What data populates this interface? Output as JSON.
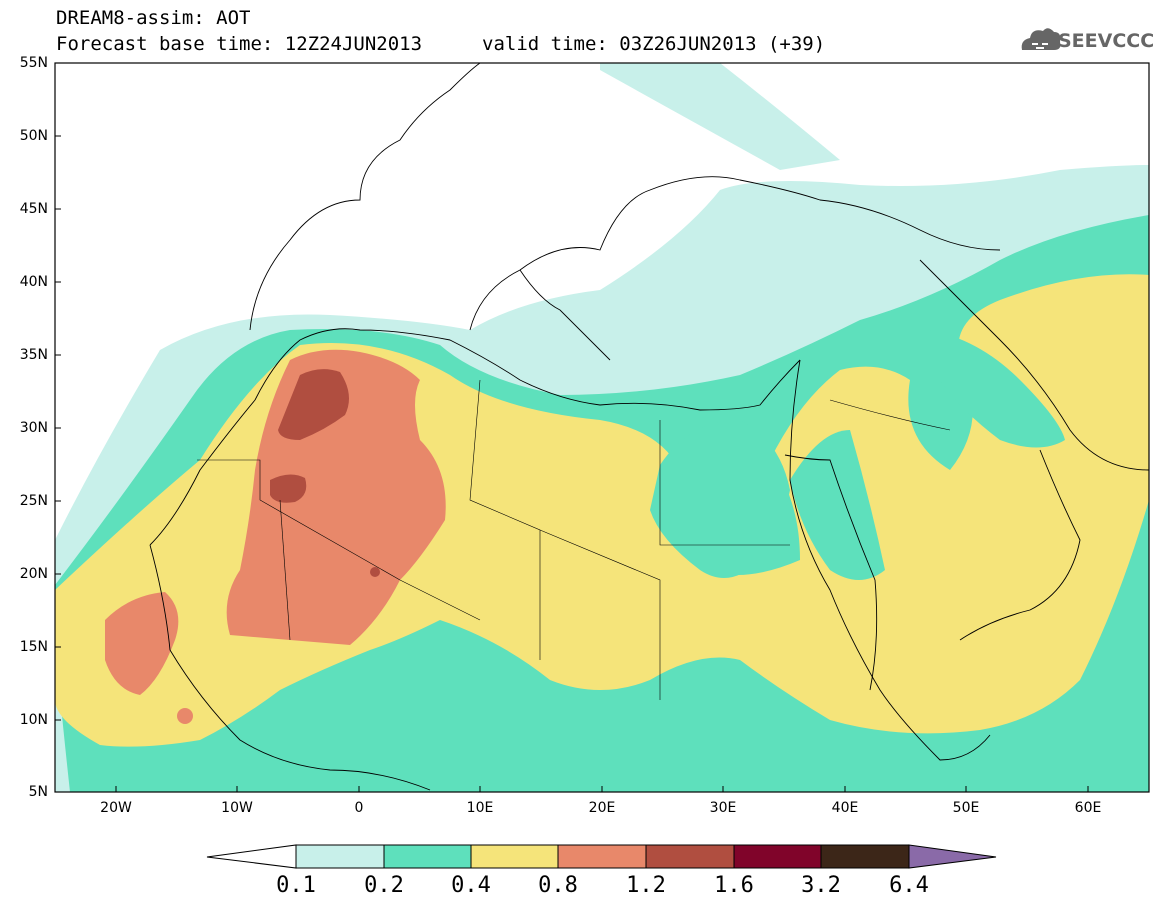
{
  "header": {
    "title_line1": "DREAM8-assim: AOT",
    "title_line2_left": "Forecast base time: 12Z24JUN2013",
    "title_line2_right": "valid time: 03Z26JUN2013 (+39)",
    "logo_text": "SEEVCCC",
    "logo_icon": "cloud-icon"
  },
  "map": {
    "lat_labels": [
      "55N",
      "50N",
      "45N",
      "40N",
      "35N",
      "30N",
      "25N",
      "20N",
      "15N",
      "10N",
      "5N"
    ],
    "lon_labels": [
      "20W",
      "10W",
      "0",
      "10E",
      "20E",
      "30E",
      "40E",
      "50E",
      "60E"
    ],
    "lon_range": [
      -25,
      65
    ],
    "lat_range": [
      5,
      55
    ]
  },
  "colorbar": {
    "labels": [
      "0.1",
      "0.2",
      "0.4",
      "0.8",
      "1.2",
      "1.6",
      "3.2",
      "6.4"
    ],
    "colors": [
      "#ffffff",
      "#c8f0ea",
      "#5ee0bc",
      "#f5e47a",
      "#e8886a",
      "#b04e40",
      "#80042a",
      "#3c2618",
      "#8a6aa8"
    ]
  }
}
